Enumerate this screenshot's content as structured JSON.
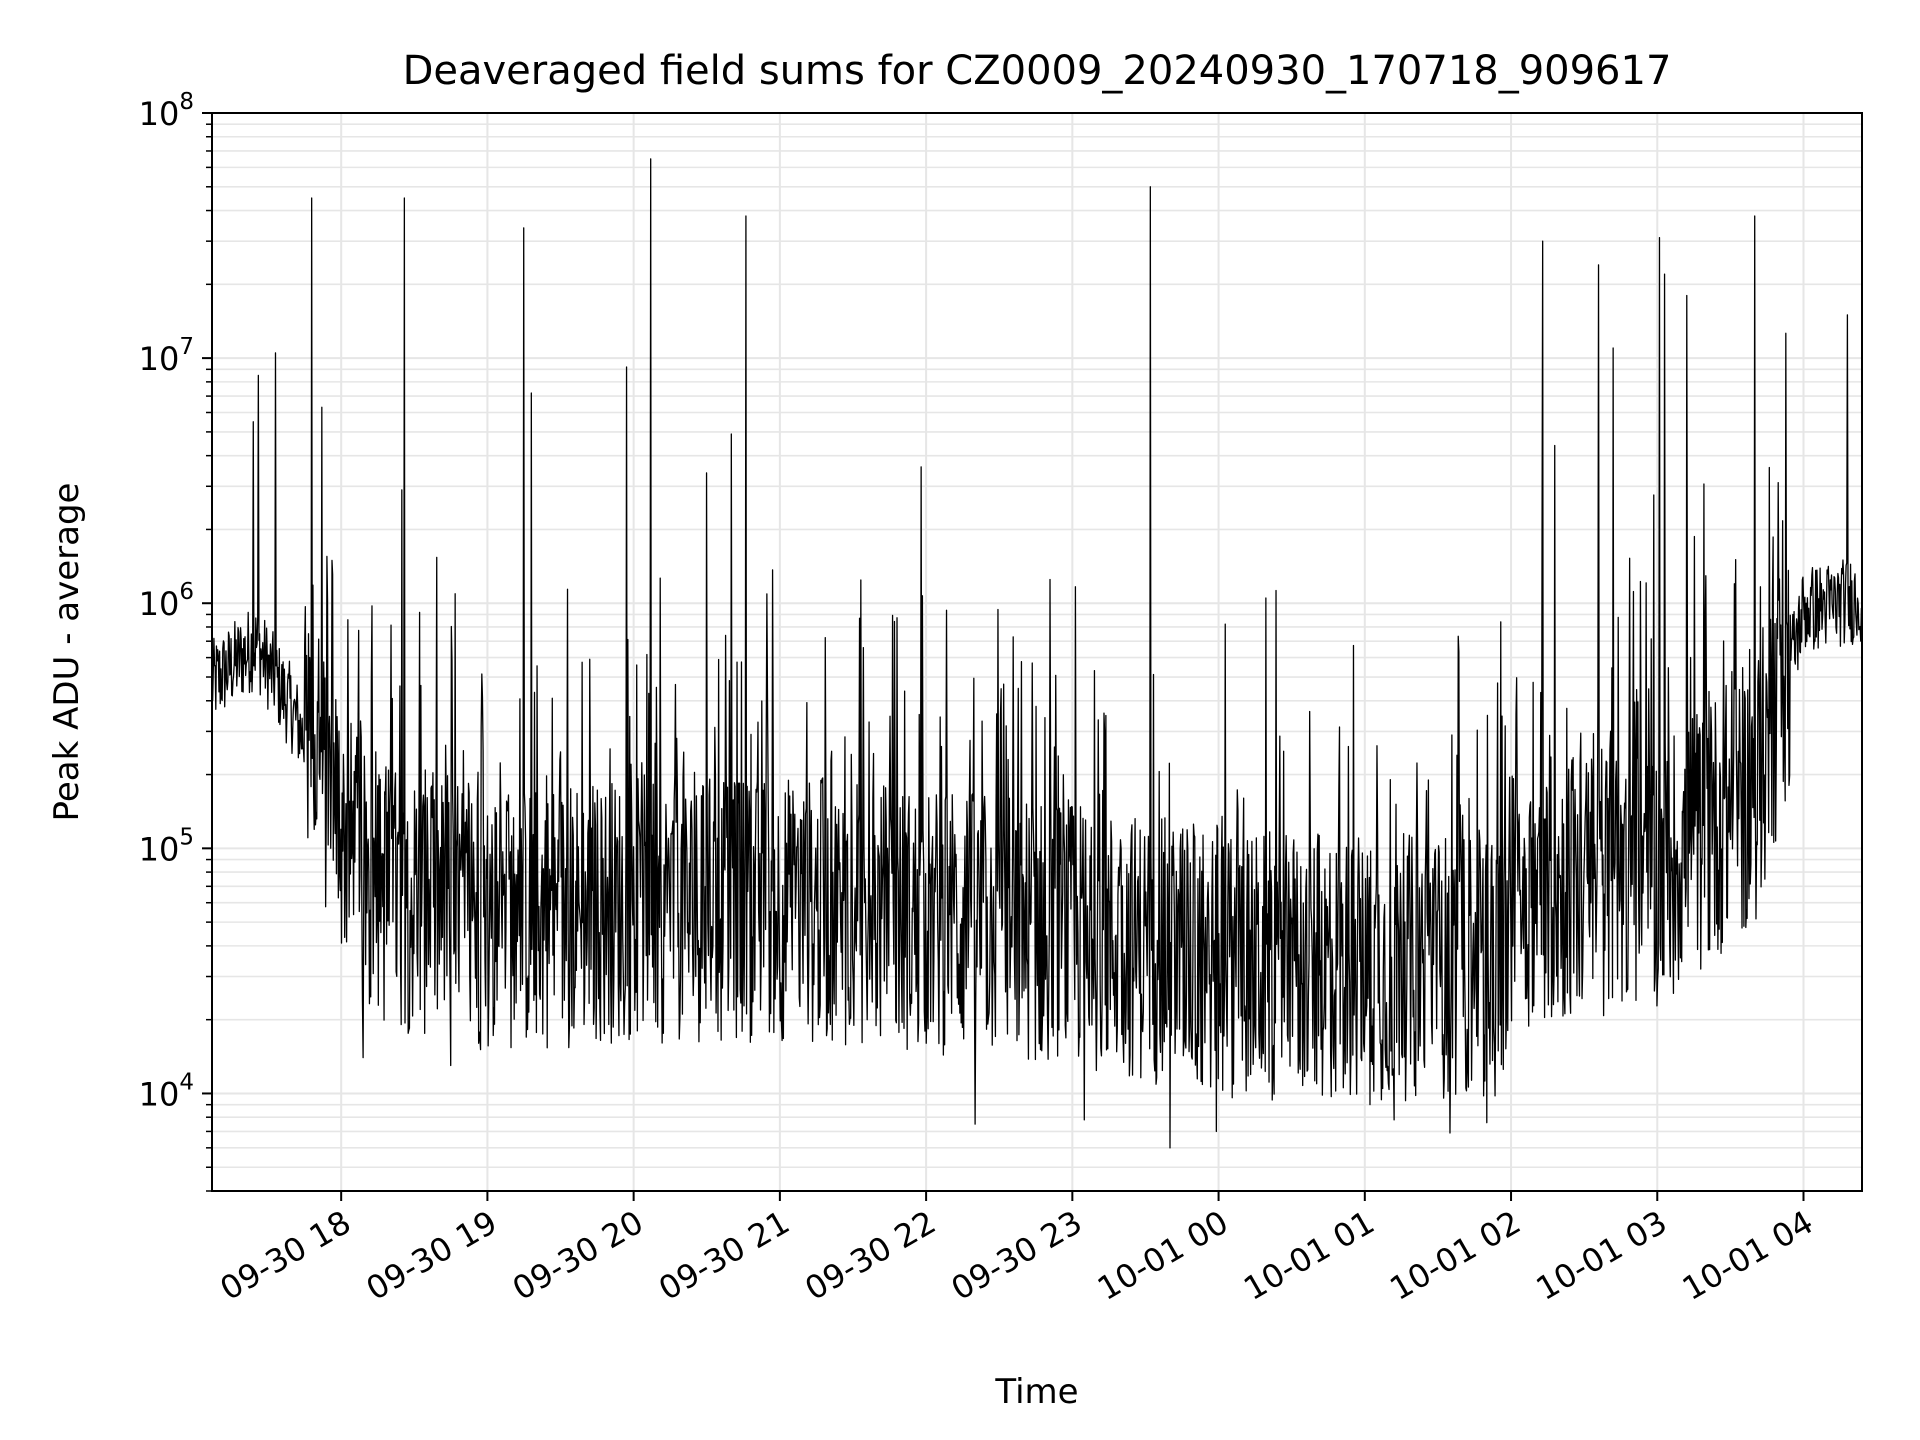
{
  "chart_data": {
    "type": "line",
    "title": "Deaveraged field sums for CZ0009_20240930_170718_909617",
    "xlabel": "Time",
    "ylabel": "Peak ADU - average",
    "y_scale": "log",
    "ylim": [
      4000,
      100000000
    ],
    "xlim": [
      "2024-09-30 17:07",
      "2024-10-01 04:24"
    ],
    "grid": true,
    "line_color": "#000000",
    "grid_color": "#e6e6e6",
    "x_ticks": [
      {
        "value": "2024-09-30 18:00",
        "label": "09-30 18"
      },
      {
        "value": "2024-09-30 19:00",
        "label": "09-30 19"
      },
      {
        "value": "2024-09-30 20:00",
        "label": "09-30 20"
      },
      {
        "value": "2024-09-30 21:00",
        "label": "09-30 21"
      },
      {
        "value": "2024-09-30 22:00",
        "label": "09-30 22"
      },
      {
        "value": "2024-09-30 23:00",
        "label": "09-30 23"
      },
      {
        "value": "2024-10-01 00:00",
        "label": "10-01 00"
      },
      {
        "value": "2024-10-01 01:00",
        "label": "10-01 01"
      },
      {
        "value": "2024-10-01 02:00",
        "label": "10-01 02"
      },
      {
        "value": "2024-10-01 03:00",
        "label": "10-01 03"
      },
      {
        "value": "2024-10-01 04:00",
        "label": "10-01 04"
      }
    ],
    "y_ticks": [
      {
        "value": 10000,
        "base": "10",
        "exp": "4"
      },
      {
        "value": 100000,
        "base": "10",
        "exp": "5"
      },
      {
        "value": 1000000,
        "base": "10",
        "exp": "6"
      },
      {
        "value": 10000000,
        "base": "10",
        "exp": "7"
      },
      {
        "value": 100000000,
        "base": "10",
        "exp": "8"
      }
    ],
    "baseline": [
      [
        "2024-09-30 17:07",
        450000
      ],
      [
        "2024-09-30 17:25",
        650000
      ],
      [
        "2024-09-30 17:40",
        350000
      ],
      [
        "2024-09-30 17:55",
        150000
      ],
      [
        "2024-09-30 18:10",
        60000
      ],
      [
        "2024-09-30 19:00",
        45000
      ],
      [
        "2024-09-30 20:00",
        50000
      ],
      [
        "2024-09-30 21:00",
        50000
      ],
      [
        "2024-09-30 22:00",
        45000
      ],
      [
        "2024-09-30 23:00",
        40000
      ],
      [
        "2024-10-01 00:00",
        30000
      ],
      [
        "2024-10-01 01:00",
        28000
      ],
      [
        "2024-10-01 01:55",
        30000
      ],
      [
        "2024-10-01 02:00",
        55000
      ],
      [
        "2024-10-01 03:00",
        70000
      ],
      [
        "2024-10-01 03:40",
        150000
      ],
      [
        "2024-10-01 04:00",
        900000
      ],
      [
        "2024-10-01 04:24",
        1000000
      ]
    ],
    "spikes": [
      [
        "2024-09-30 17:24",
        5500000
      ],
      [
        "2024-09-30 17:26",
        8500000
      ],
      [
        "2024-09-30 17:33",
        10500000
      ],
      [
        "2024-09-30 17:48",
        45000000
      ],
      [
        "2024-09-30 17:52",
        6300000
      ],
      [
        "2024-09-30 18:25",
        2900000
      ],
      [
        "2024-09-30 18:26",
        45000000
      ],
      [
        "2024-09-30 19:15",
        34000000
      ],
      [
        "2024-09-30 19:18",
        7200000
      ],
      [
        "2024-09-30 19:57",
        9200000
      ],
      [
        "2024-09-30 20:07",
        65000000
      ],
      [
        "2024-09-30 20:30",
        3400000
      ],
      [
        "2024-09-30 20:40",
        4900000
      ],
      [
        "2024-09-30 20:46",
        38000000
      ],
      [
        "2024-09-30 21:58",
        3600000
      ],
      [
        "2024-09-30 23:32",
        50000000
      ],
      [
        "2024-10-01 02:13",
        30000000
      ],
      [
        "2024-10-01 02:18",
        4400000
      ],
      [
        "2024-10-01 02:36",
        24000000
      ],
      [
        "2024-10-01 02:42",
        11000000
      ],
      [
        "2024-10-01 03:01",
        31000000
      ],
      [
        "2024-10-01 03:03",
        22000000
      ],
      [
        "2024-10-01 03:12",
        18000000
      ],
      [
        "2024-10-01 03:40",
        38000000
      ],
      [
        "2024-10-01 04:18",
        15000000
      ]
    ],
    "dips": [
      [
        "2024-09-30 18:09",
        14000
      ],
      [
        "2024-09-30 18:45",
        13000
      ],
      [
        "2024-09-30 22:20",
        7500
      ],
      [
        "2024-09-30 23:05",
        7800
      ],
      [
        "2024-09-30 23:40",
        6000
      ],
      [
        "2024-09-30 23:59",
        7000
      ],
      [
        "2024-10-01 01:12",
        7800
      ],
      [
        "2024-10-01 01:35",
        6900
      ],
      [
        "2024-10-01 01:50",
        7600
      ]
    ]
  }
}
